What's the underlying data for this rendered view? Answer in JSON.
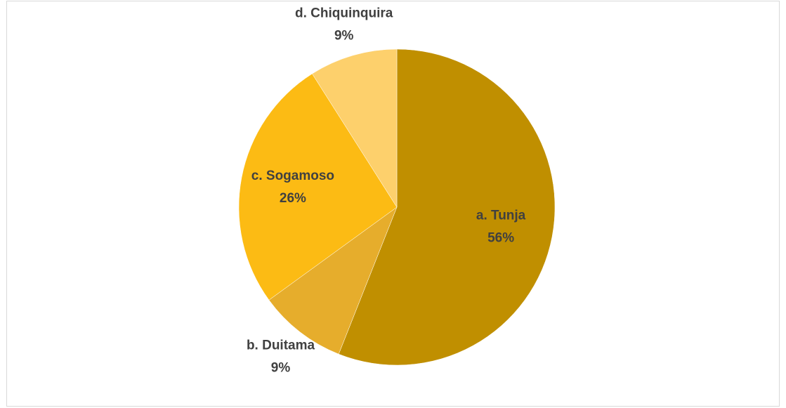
{
  "chart_data": {
    "type": "pie",
    "categories": [
      "a. Tunja",
      "b. Duitama",
      "c. Sogamoso",
      "d. Chiquinquira"
    ],
    "values": [
      56,
      9,
      26,
      9
    ],
    "value_labels": [
      "56%",
      "9%",
      "26%",
      "9%"
    ],
    "colors": [
      "#c08f00",
      "#e6ad2c",
      "#fcbb14",
      "#fdd06c"
    ]
  }
}
